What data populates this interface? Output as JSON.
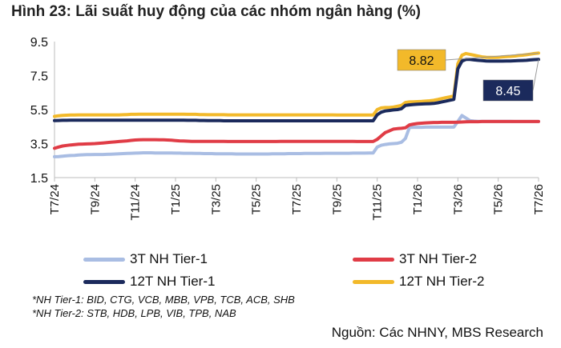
{
  "figure_title": "Hình 23: Lãi suất huy động của các nhóm ngân hàng (%)",
  "notes": [
    "*NH Tier-1: BID, CTG, VCB, MBB, VPB, TCB, ACB, SHB",
    "*NH Tier-2: STB, HDB, LPB, VIB, TPB, NAB"
  ],
  "source": "Nguồn: Các NHNY, MBS Research",
  "chart_data": {
    "type": "line",
    "title": "Hình 23: Lãi suất huy động của các nhóm ngân hàng (%)",
    "xlabel": "",
    "ylabel": "",
    "ylim": [
      1.5,
      9.5
    ],
    "yticks": [
      "1.5",
      "3.5",
      "5.5",
      "7.5",
      "9.5"
    ],
    "xticks": [
      "T7/24",
      "T9/24",
      "T11/24",
      "T1/25",
      "T3/25",
      "T5/25",
      "T7/25",
      "T9/25",
      "T11/25",
      "T1/26",
      "T3/26",
      "T5/26",
      "T7/26"
    ],
    "grid": false,
    "legend_position": "bottom",
    "x_positions": [
      0,
      1,
      2,
      3,
      4,
      5,
      6,
      7,
      8,
      9,
      10,
      11,
      12,
      13,
      14,
      15,
      16,
      17,
      18,
      19,
      20,
      21,
      22,
      23,
      24,
      25,
      26,
      27,
      28,
      29,
      30,
      31,
      32,
      33,
      34,
      35,
      36,
      37,
      38,
      39,
      40,
      41,
      42,
      43,
      44,
      45,
      46,
      47,
      48,
      49,
      50,
      51,
      52,
      53,
      54,
      55,
      56,
      57,
      58,
      59,
      60,
      61,
      62,
      63,
      64,
      65,
      66,
      67,
      68,
      69,
      70,
      71,
      72,
      73,
      74,
      75,
      76,
      77,
      78,
      79,
      80,
      81,
      82,
      83,
      84,
      85,
      86,
      87,
      88,
      89,
      90,
      91,
      92,
      93,
      94,
      95,
      96,
      97,
      98,
      99,
      100,
      101,
      102,
      103,
      104,
      105,
      106,
      107,
      108,
      109,
      110,
      111,
      112,
      113,
      114,
      115,
      116,
      117,
      118,
      119,
      120
    ],
    "series": [
      {
        "name": "3T NH Tier-1",
        "color": "#a9bde3",
        "values": [
          2.73,
          2.74,
          2.76,
          2.78,
          2.8,
          2.81,
          2.83,
          2.84,
          2.85,
          2.85,
          2.86,
          2.86,
          2.86,
          2.87,
          2.88,
          2.89,
          2.9,
          2.91,
          2.92,
          2.93,
          2.94,
          2.95,
          2.96,
          2.96,
          2.96,
          2.95,
          2.95,
          2.95,
          2.95,
          2.95,
          2.94,
          2.94,
          2.93,
          2.93,
          2.93,
          2.92,
          2.92,
          2.91,
          2.91,
          2.91,
          2.9,
          2.9,
          2.9,
          2.9,
          2.9,
          2.89,
          2.89,
          2.89,
          2.89,
          2.89,
          2.89,
          2.89,
          2.89,
          2.89,
          2.9,
          2.9,
          2.9,
          2.9,
          2.91,
          2.91,
          2.91,
          2.91,
          2.92,
          2.92,
          2.92,
          2.92,
          2.92,
          2.93,
          2.93,
          2.93,
          2.93,
          2.93,
          2.93,
          2.93,
          2.94,
          2.94,
          2.94,
          2.94,
          2.95,
          2.95,
          3.3,
          3.4,
          3.45,
          3.48,
          3.5,
          3.52,
          3.58,
          3.8,
          4.45,
          4.46,
          4.46,
          4.46,
          4.47,
          4.47,
          4.47,
          4.47,
          4.47,
          4.47,
          4.47,
          4.47,
          4.8,
          5.15,
          5.0,
          4.85,
          4.82,
          4.81,
          4.81,
          4.81,
          4.81,
          4.81,
          4.81,
          4.81,
          4.81,
          4.81,
          4.8,
          4.8,
          4.8,
          4.8,
          4.8,
          4.8,
          4.8
        ]
      },
      {
        "name": "3T NH Tier-2",
        "color": "#e03c46",
        "values": [
          3.22,
          3.3,
          3.36,
          3.39,
          3.42,
          3.44,
          3.46,
          3.47,
          3.48,
          3.49,
          3.5,
          3.52,
          3.54,
          3.56,
          3.58,
          3.6,
          3.62,
          3.64,
          3.66,
          3.69,
          3.71,
          3.72,
          3.73,
          3.73,
          3.73,
          3.73,
          3.72,
          3.72,
          3.71,
          3.7,
          3.68,
          3.66,
          3.65,
          3.64,
          3.63,
          3.63,
          3.63,
          3.63,
          3.63,
          3.63,
          3.63,
          3.63,
          3.63,
          3.62,
          3.62,
          3.62,
          3.62,
          3.62,
          3.62,
          3.62,
          3.62,
          3.62,
          3.62,
          3.62,
          3.62,
          3.62,
          3.63,
          3.63,
          3.63,
          3.63,
          3.63,
          3.63,
          3.63,
          3.63,
          3.63,
          3.63,
          3.63,
          3.63,
          3.63,
          3.63,
          3.63,
          3.63,
          3.63,
          3.63,
          3.63,
          3.62,
          3.62,
          3.62,
          3.62,
          3.62,
          3.75,
          3.95,
          4.15,
          4.25,
          4.35,
          4.38,
          4.4,
          4.43,
          4.6,
          4.65,
          4.68,
          4.7,
          4.72,
          4.73,
          4.74,
          4.74,
          4.75,
          4.75,
          4.75,
          4.75,
          4.76,
          4.77,
          4.78,
          4.79,
          4.79,
          4.79,
          4.8,
          4.8,
          4.8,
          4.8,
          4.8,
          4.8,
          4.8,
          4.8,
          4.8,
          4.8,
          4.8,
          4.8,
          4.8,
          4.8,
          4.8
        ]
      },
      {
        "name": "12T NH Tier-1",
        "color": "#1b2a5c",
        "values": [
          4.85,
          4.86,
          4.87,
          4.87,
          4.88,
          4.88,
          4.88,
          4.88,
          4.88,
          4.88,
          4.88,
          4.88,
          4.88,
          4.88,
          4.88,
          4.88,
          4.88,
          4.88,
          4.88,
          4.88,
          4.88,
          4.88,
          4.88,
          4.88,
          4.88,
          4.88,
          4.88,
          4.88,
          4.88,
          4.88,
          4.88,
          4.88,
          4.88,
          4.87,
          4.87,
          4.87,
          4.86,
          4.86,
          4.85,
          4.85,
          4.85,
          4.85,
          4.84,
          4.84,
          4.84,
          4.84,
          4.84,
          4.84,
          4.84,
          4.84,
          4.84,
          4.84,
          4.84,
          4.84,
          4.84,
          4.84,
          4.84,
          4.84,
          4.84,
          4.84,
          4.84,
          4.84,
          4.84,
          4.84,
          4.84,
          4.84,
          4.84,
          4.84,
          4.84,
          4.84,
          4.84,
          4.84,
          4.84,
          4.84,
          4.84,
          4.84,
          4.84,
          4.84,
          4.84,
          4.84,
          5.2,
          5.35,
          5.42,
          5.45,
          5.48,
          5.5,
          5.55,
          5.75,
          5.78,
          5.8,
          5.82,
          5.83,
          5.84,
          5.85,
          5.86,
          5.9,
          5.95,
          6.0,
          6.05,
          6.1,
          7.9,
          8.35,
          8.45,
          8.45,
          8.42,
          8.4,
          8.38,
          8.36,
          8.35,
          8.35,
          8.35,
          8.35,
          8.36,
          8.36,
          8.37,
          8.38,
          8.39,
          8.4,
          8.42,
          8.44,
          8.45
        ]
      },
      {
        "name": "12T NH Tier-2",
        "color": "#f2b92a",
        "values": [
          5.1,
          5.14,
          5.16,
          5.17,
          5.18,
          5.18,
          5.19,
          5.19,
          5.19,
          5.19,
          5.19,
          5.19,
          5.19,
          5.19,
          5.19,
          5.19,
          5.19,
          5.2,
          5.21,
          5.22,
          5.22,
          5.23,
          5.23,
          5.23,
          5.23,
          5.23,
          5.23,
          5.23,
          5.23,
          5.23,
          5.23,
          5.23,
          5.23,
          5.22,
          5.22,
          5.22,
          5.21,
          5.21,
          5.2,
          5.2,
          5.2,
          5.2,
          5.2,
          5.19,
          5.19,
          5.19,
          5.19,
          5.19,
          5.19,
          5.19,
          5.19,
          5.19,
          5.19,
          5.19,
          5.19,
          5.19,
          5.19,
          5.19,
          5.19,
          5.19,
          5.19,
          5.19,
          5.19,
          5.19,
          5.19,
          5.19,
          5.19,
          5.19,
          5.19,
          5.19,
          5.18,
          5.18,
          5.18,
          5.18,
          5.18,
          5.18,
          5.18,
          5.18,
          5.18,
          5.18,
          5.5,
          5.6,
          5.62,
          5.62,
          5.65,
          5.7,
          5.75,
          5.92,
          5.95,
          5.96,
          5.97,
          5.98,
          6.0,
          6.02,
          6.05,
          6.1,
          6.15,
          6.2,
          6.25,
          6.3,
          8.2,
          8.7,
          8.8,
          8.75,
          8.7,
          8.65,
          8.6,
          8.58,
          8.57,
          8.57,
          8.58,
          8.6,
          8.62,
          8.63,
          8.65,
          8.68,
          8.7,
          8.73,
          8.76,
          8.8,
          8.82
        ]
      }
    ],
    "callouts": [
      {
        "label": "8.82",
        "series": "12T NH Tier-2",
        "color": "#f2b92a",
        "text_color": "#111111"
      },
      {
        "label": "8.45",
        "series": "12T NH Tier-1",
        "color": "#1b2a5c",
        "text_color": "#ffffff"
      }
    ]
  }
}
